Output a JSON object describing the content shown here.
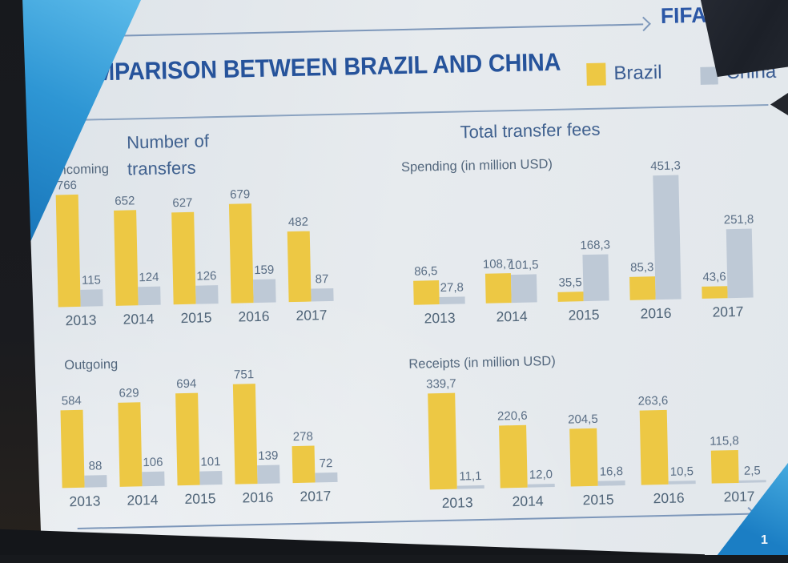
{
  "photo": {
    "fifa_wordmark": "FIFA",
    "page_number": "1"
  },
  "slide": {
    "title": "COMPARISON BETWEEN BRAZIL AND CHINA",
    "legend": {
      "brazil": {
        "label": "Brazil",
        "color": "#edc844"
      },
      "china": {
        "label": "China",
        "color": "#bec9d6"
      }
    },
    "colors": {
      "title_blue": "#26539b",
      "label_gray_blue": "#53677d",
      "arrow_blue": "#7d97ba",
      "background": "#e3e8ed"
    }
  },
  "chart_data": [
    {
      "type": "bar",
      "title": "Number of transfers",
      "subtitle": "Incoming",
      "categories": [
        "2013",
        "2014",
        "2015",
        "2016",
        "2017"
      ],
      "series": [
        {
          "name": "Brazil",
          "values": [
            766,
            652,
            627,
            679,
            482
          ],
          "labels": [
            "766",
            "652",
            "627",
            "679",
            "482"
          ]
        },
        {
          "name": "China",
          "values": [
            115,
            124,
            126,
            159,
            87
          ],
          "labels": [
            "115",
            "124",
            "126",
            "159",
            "87"
          ]
        }
      ],
      "ylim": [
        0,
        766
      ],
      "grid": false,
      "legend_position": "top-right"
    },
    {
      "type": "bar",
      "title": "Total transfer fees",
      "subtitle": "Spending (in million USD)",
      "categories": [
        "2013",
        "2014",
        "2015",
        "2016",
        "2017"
      ],
      "series": [
        {
          "name": "Brazil",
          "values": [
            86.5,
            108.7,
            35.5,
            85.3,
            43.6
          ],
          "labels": [
            "86,5",
            "108,7",
            "35,5",
            "85,3",
            "43,6"
          ]
        },
        {
          "name": "China",
          "values": [
            27.8,
            101.5,
            168.3,
            451.3,
            251.8
          ],
          "labels": [
            "27,8",
            "101,5",
            "168,3",
            "451,3",
            "251,8"
          ]
        }
      ],
      "ylim": [
        0,
        451.3
      ],
      "grid": false,
      "legend_position": "top-right"
    },
    {
      "type": "bar",
      "title": "",
      "subtitle": "Outgoing",
      "categories": [
        "2013",
        "2014",
        "2015",
        "2016",
        "2017"
      ],
      "series": [
        {
          "name": "Brazil",
          "values": [
            584,
            629,
            694,
            751,
            278
          ],
          "labels": [
            "584",
            "629",
            "694",
            "751",
            "278"
          ]
        },
        {
          "name": "China",
          "values": [
            88,
            106,
            101,
            139,
            72
          ],
          "labels": [
            "88",
            "106",
            "101",
            "139",
            "72"
          ]
        }
      ],
      "ylim": [
        0,
        751
      ],
      "grid": false,
      "legend_position": "top-right"
    },
    {
      "type": "bar",
      "title": "",
      "subtitle": "Receipts (in million USD)",
      "categories": [
        "2013",
        "2014",
        "2015",
        "2016",
        "2017"
      ],
      "series": [
        {
          "name": "Brazil",
          "values": [
            339.7,
            220.6,
            204.5,
            263.6,
            115.8
          ],
          "labels": [
            "339,7",
            "220,6",
            "204,5",
            "263,6",
            "115,8"
          ]
        },
        {
          "name": "China",
          "values": [
            11.1,
            12.0,
            16.8,
            10.5,
            2.5
          ],
          "labels": [
            "11,1",
            "12,0",
            "16,8",
            "10,5",
            "2,5"
          ]
        }
      ],
      "ylim": [
        0,
        339.7
      ],
      "grid": false,
      "legend_position": "top-right"
    }
  ]
}
